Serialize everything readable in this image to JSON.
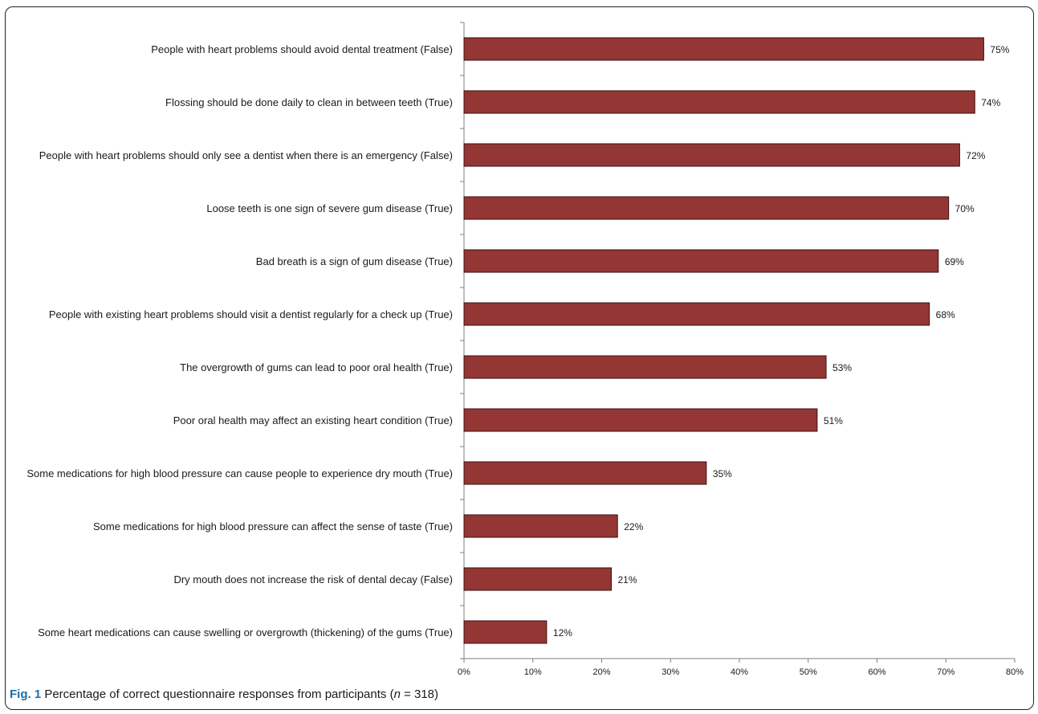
{
  "chart_data": {
    "type": "bar",
    "orientation": "horizontal",
    "categories": [
      "People with heart problems should avoid dental treatment (False)",
      "Flossing should be done daily to clean in between teeth (True)",
      "People with heart problems should only see a dentist when there is an emergency (False)",
      "Loose teeth is one sign of severe gum disease (True)",
      "Bad breath is a sign of gum disease (True)",
      "People with existing heart problems should visit a dentist regularly for a check up (True)",
      "The overgrowth of gums can lead to poor oral health (True)",
      "Poor oral health may affect an existing heart condition (True)",
      "Some medications for high blood pressure can cause people to experience dry mouth (True)",
      "Some medications for high blood pressure can affect the sense of taste (True)",
      "Dry mouth does not increase the risk of dental decay (False)",
      "Some heart medications can cause swelling or overgrowth (thickening) of the gums (True)"
    ],
    "values": [
      75.5,
      74.2,
      72.0,
      70.4,
      68.9,
      67.6,
      52.6,
      51.3,
      35.2,
      22.3,
      21.4,
      12.0
    ],
    "value_labels": [
      "75%",
      "74%",
      "72%",
      "70%",
      "69%",
      "68%",
      "53%",
      "51%",
      "35%",
      "22%",
      "21%",
      "12%"
    ],
    "xlim": [
      0,
      80
    ],
    "xticks": [
      "0%",
      "10%",
      "20%",
      "30%",
      "40%",
      "50%",
      "60%",
      "70%",
      "80%"
    ],
    "grid": false,
    "bar_color": "#943634"
  },
  "caption": {
    "fig_label": "Fig. 1",
    "text_before": " Percentage of correct questionnaire responses from participants (",
    "n_italic": "n",
    "text_after": " = 318)"
  }
}
